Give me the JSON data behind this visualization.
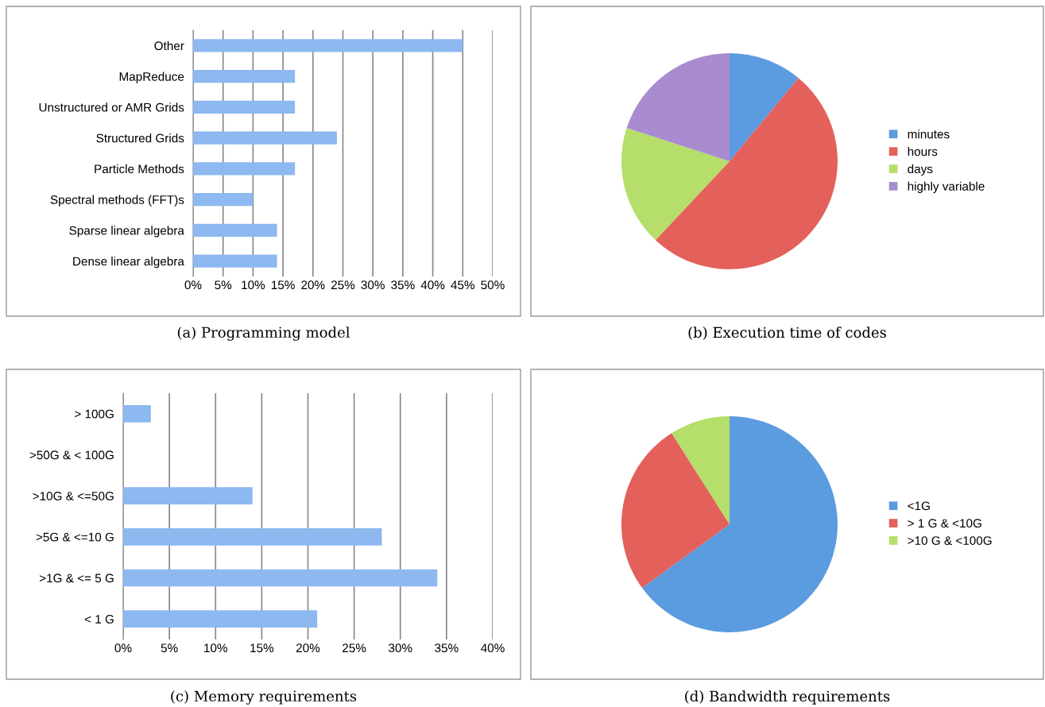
{
  "chart_data": [
    {
      "type": "bar",
      "orientation": "horizontal",
      "title": "(a) Programming model",
      "categories": [
        "Other",
        "MapReduce",
        "Unstructured or AMR Grids",
        "Structured Grids",
        "Particle Methods",
        "Spectral methods (FFT)s",
        "Sparse linear algebra",
        "Dense linear algebra"
      ],
      "values": [
        45,
        17,
        17,
        24,
        17,
        10,
        14,
        14
      ],
      "color": "#8db8f0",
      "xlim": [
        0,
        50
      ],
      "xticks": [
        {
          "value": 0,
          "label": "0%"
        },
        {
          "value": 5,
          "label": "5%"
        },
        {
          "value": 10,
          "label": "10%"
        },
        {
          "value": 15,
          "label": "15%"
        },
        {
          "value": 20,
          "label": "20%"
        },
        {
          "value": 25,
          "label": "25%"
        },
        {
          "value": 30,
          "label": "30%"
        },
        {
          "value": 35,
          "label": "35%"
        },
        {
          "value": 40,
          "label": "40%"
        },
        {
          "value": 45,
          "label": "45%"
        },
        {
          "value": 50,
          "label": "50%"
        }
      ],
      "grid": "x"
    },
    {
      "type": "pie",
      "title": "(b) Execution time of codes",
      "categories": [
        "minutes",
        "hours",
        "days",
        "highly variable"
      ],
      "values": [
        11,
        51,
        18,
        20
      ],
      "colors": [
        "#5b9bdf",
        "#e4605a",
        "#b5de6a",
        "#a98bd0"
      ],
      "legend": "right"
    },
    {
      "type": "bar",
      "orientation": "horizontal",
      "title": "(c) Memory requirements",
      "categories": [
        "> 100G",
        ">50G & < 100G",
        ">10G & <=50G",
        ">5G & <=10 G",
        ">1G & <= 5 G",
        "< 1 G"
      ],
      "values": [
        3,
        0,
        14,
        28,
        34,
        21
      ],
      "color": "#8db8f0",
      "xlim": [
        0,
        40
      ],
      "xticks": [
        {
          "value": 0,
          "label": "0%"
        },
        {
          "value": 5,
          "label": "5%"
        },
        {
          "value": 10,
          "label": "10%"
        },
        {
          "value": 15,
          "label": "15%"
        },
        {
          "value": 20,
          "label": "20%"
        },
        {
          "value": 25,
          "label": "25%"
        },
        {
          "value": 30,
          "label": "30%"
        },
        {
          "value": 35,
          "label": "35%"
        },
        {
          "value": 40,
          "label": "40%"
        }
      ],
      "grid": "x"
    },
    {
      "type": "pie",
      "title": "(d) Bandwidth requirements",
      "categories": [
        "<1G",
        "> 1 G & <10G",
        ">10 G & <100G"
      ],
      "values": [
        65,
        26,
        9
      ],
      "colors": [
        "#5b9bdf",
        "#e4605a",
        "#b5de6a"
      ],
      "legend": "right"
    }
  ]
}
